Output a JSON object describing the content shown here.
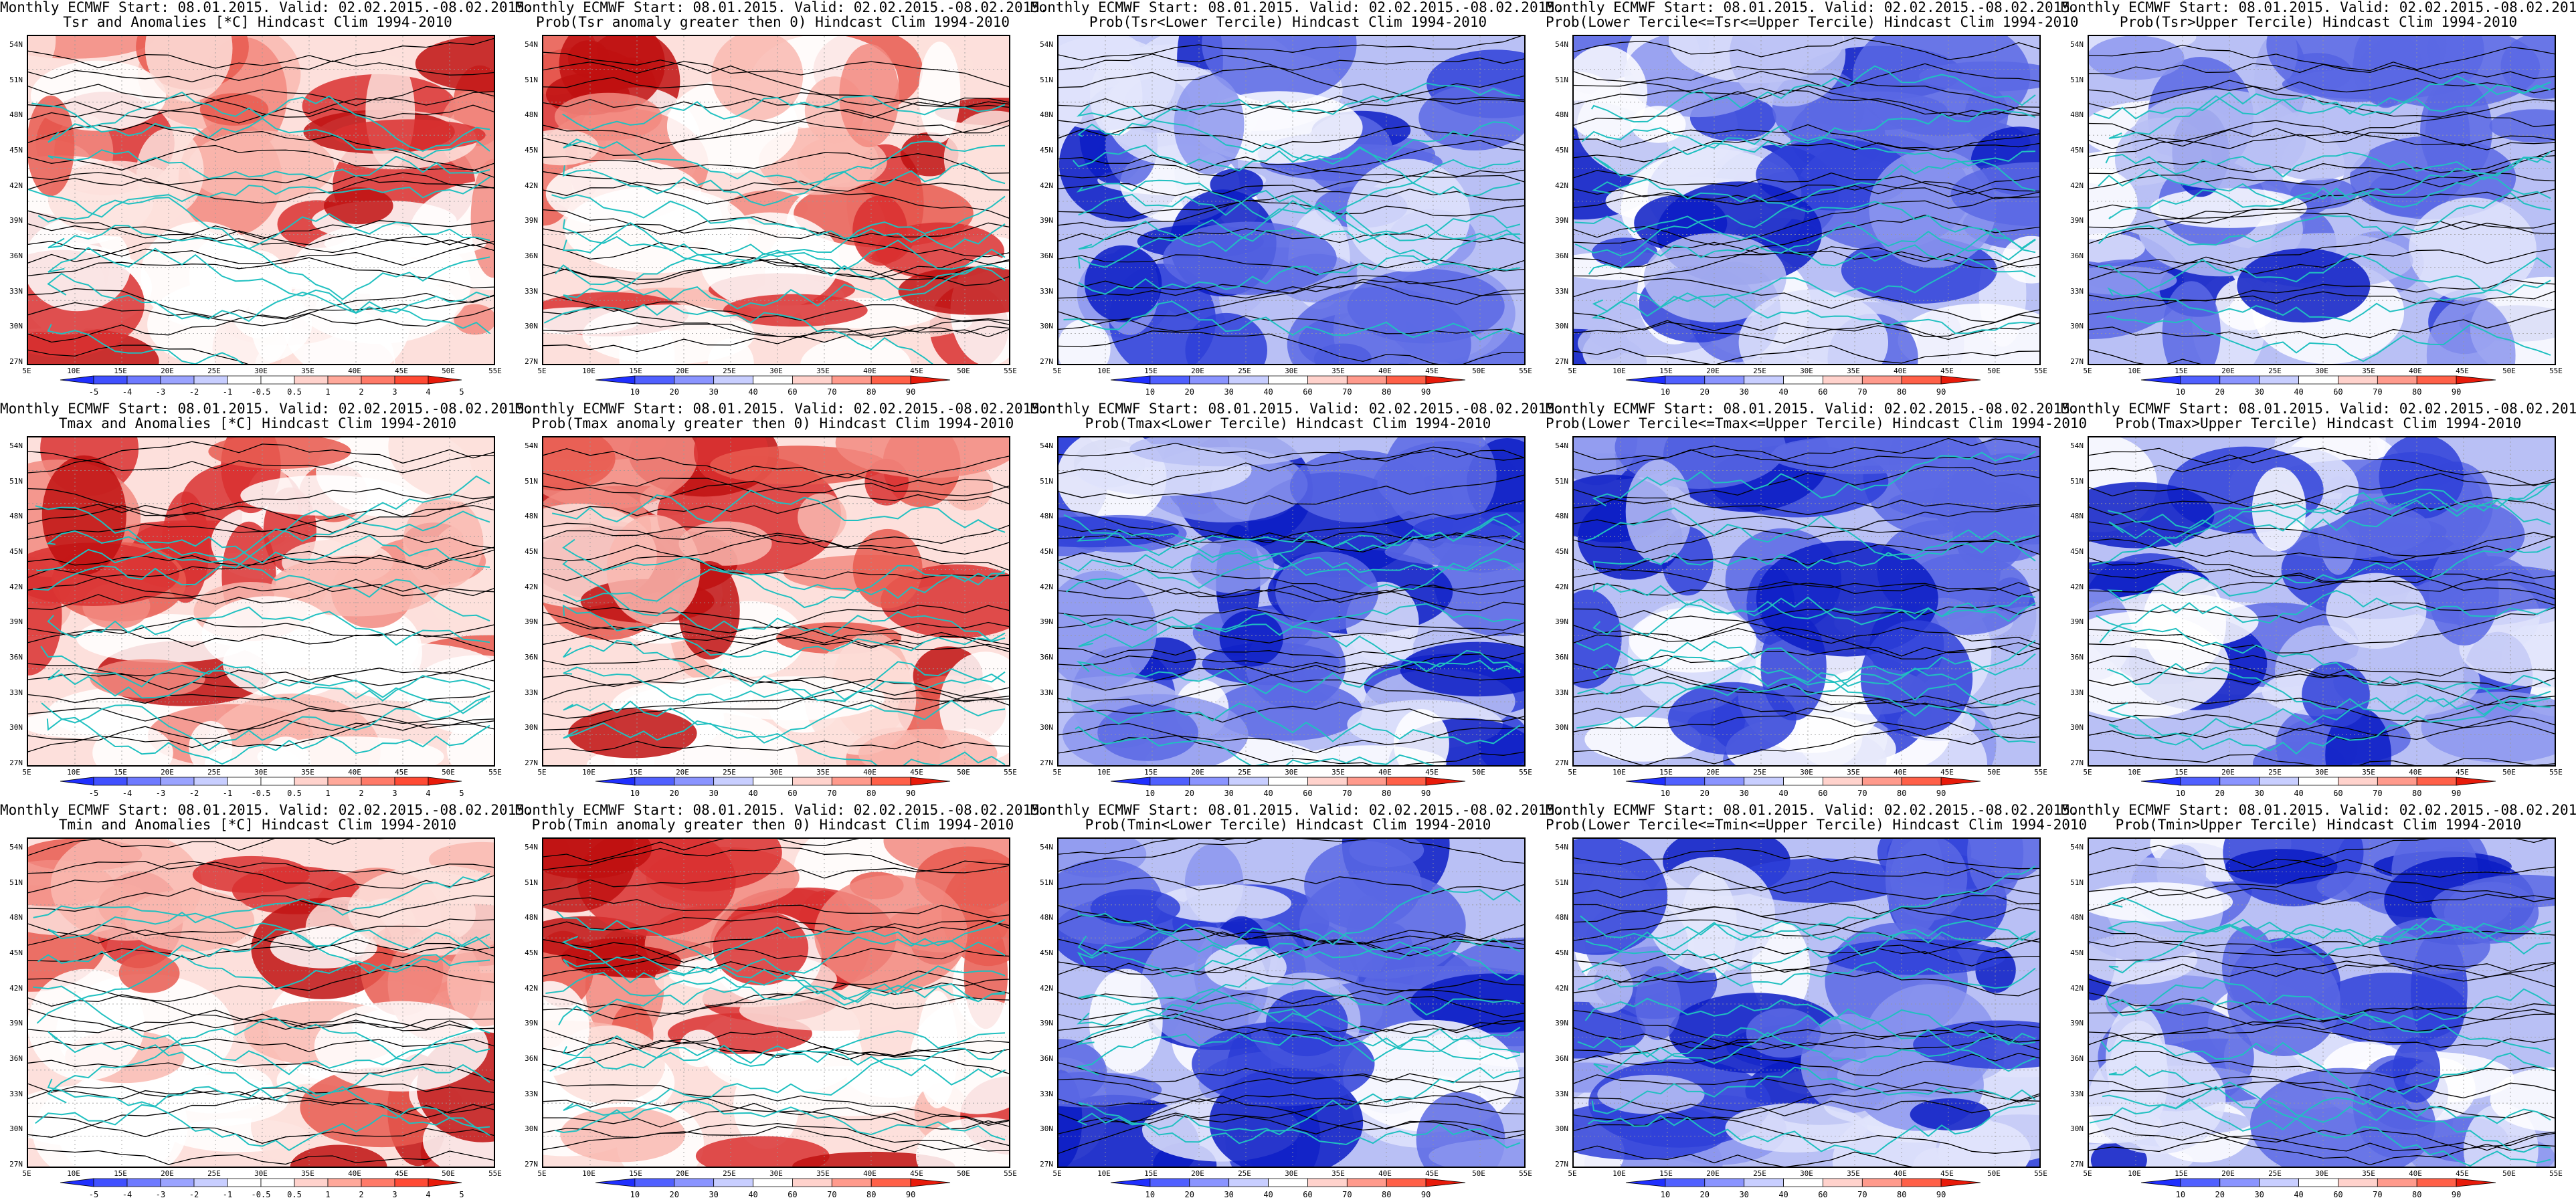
{
  "colors": {
    "red_scale": [
      "#ffffff",
      "#fde0dc",
      "#f9b8b0",
      "#f28a80",
      "#e85a50",
      "#d93030",
      "#c01010"
    ],
    "blue_scale": [
      "#ffffff",
      "#dfe3fb",
      "#b9c0f5",
      "#8c97ee",
      "#5b68e4",
      "#2e3fd8",
      "#0a1cc4"
    ],
    "prob_bar": [
      "#1f2fff",
      "#5060ff",
      "#8a94ff",
      "#c8ceff",
      "#ffffff",
      "#ffd2cc",
      "#ff9a8c",
      "#ff6048",
      "#e81a0a"
    ],
    "anom_bar": [
      "#1f2fff",
      "#4050ff",
      "#6e7aff",
      "#9aa3ff",
      "#c8ceff",
      "#ffffff",
      "#ffffff",
      "#ffd2cc",
      "#ffa89a",
      "#ff7a68",
      "#ff4a34",
      "#e81a0a"
    ],
    "coast": "#20c0c0",
    "contour": "#000000"
  },
  "axes": {
    "yticks": [
      "54N",
      "51N",
      "48N",
      "45N",
      "42N",
      "39N",
      "36N",
      "33N",
      "30N",
      "27N"
    ],
    "xticks": [
      "5E",
      "10E",
      "15E",
      "20E",
      "25E",
      "30E",
      "35E",
      "40E",
      "45E",
      "50E",
      "55E"
    ]
  },
  "colorbars": {
    "anomaly": [
      "-5",
      "-4",
      "-3",
      "-2",
      "-1",
      "-0.5",
      "0.5",
      "1",
      "2",
      "3",
      "4",
      "5"
    ],
    "probability": [
      "10",
      "20",
      "30",
      "40",
      "60",
      "70",
      "80",
      "90"
    ]
  },
  "chart_data": [
    {
      "type": "heatmap",
      "scheme": "red",
      "colorbar": "anomaly",
      "title": "Monthly ECMWF Start: 08.01.2015. Valid: 02.02.2015.-08.02.2015.",
      "subtitle": "Tsr and Anomalies [*C] Hindcast Clim 1994-2010"
    },
    {
      "type": "heatmap",
      "scheme": "red",
      "colorbar": "probability",
      "title": "Monthly ECMWF Start: 08.01.2015. Valid: 02.02.2015.-08.02.2015.",
      "subtitle": "Prob(Tsr anomaly greater then 0) Hindcast Clim 1994-2010"
    },
    {
      "type": "heatmap",
      "scheme": "blue",
      "colorbar": "probability",
      "title": "Monthly ECMWF Start: 08.01.2015. Valid: 02.02.2015.-08.02.2015.",
      "subtitle": "Prob(Tsr<Lower Tercile) Hindcast Clim 1994-2010"
    },
    {
      "type": "heatmap",
      "scheme": "blue",
      "colorbar": "probability",
      "title": "Monthly ECMWF Start: 08.01.2015. Valid: 02.02.2015.-08.02.2015.",
      "subtitle": "Prob(Lower Tercile<=Tsr<=Upper Tercile) Hindcast Clim 1994-2010"
    },
    {
      "type": "heatmap",
      "scheme": "blue",
      "colorbar": "probability",
      "title": "Monthly ECMWF Start: 08.01.2015. Valid: 02.02.2015.-08.02.2015.",
      "subtitle": "Prob(Tsr>Upper Tercile) Hindcast Clim 1994-2010"
    },
    {
      "type": "heatmap",
      "scheme": "red",
      "colorbar": "anomaly",
      "title": "Monthly ECMWF Start: 08.01.2015. Valid: 02.02.2015.-08.02.2015.",
      "subtitle": "Tmax and Anomalies [*C] Hindcast Clim 1994-2010"
    },
    {
      "type": "heatmap",
      "scheme": "red",
      "colorbar": "probability",
      "title": "Monthly ECMWF Start: 08.01.2015. Valid: 02.02.2015.-08.02.2015.",
      "subtitle": "Prob(Tmax anomaly greater then 0) Hindcast Clim 1994-2010"
    },
    {
      "type": "heatmap",
      "scheme": "blue",
      "colorbar": "probability",
      "title": "Monthly ECMWF Start: 08.01.2015. Valid: 02.02.2015.-08.02.2015.",
      "subtitle": "Prob(Tmax<Lower Tercile) Hindcast Clim 1994-2010"
    },
    {
      "type": "heatmap",
      "scheme": "blue",
      "colorbar": "probability",
      "title": "Monthly ECMWF Start: 08.01.2015. Valid: 02.02.2015.-08.02.2015.",
      "subtitle": "Prob(Lower Tercile<=Tmax<=Upper Tercile) Hindcast Clim 1994-2010"
    },
    {
      "type": "heatmap",
      "scheme": "blue",
      "colorbar": "probability",
      "title": "Monthly ECMWF Start: 08.01.2015. Valid: 02.02.2015.-08.02.2015.",
      "subtitle": "Prob(Tmax>Upper Tercile) Hindcast Clim 1994-2010"
    },
    {
      "type": "heatmap",
      "scheme": "red",
      "colorbar": "anomaly",
      "title": "Monthly ECMWF Start: 08.01.2015. Valid: 02.02.2015.-08.02.2015.",
      "subtitle": "Tmin and Anomalies [*C] Hindcast Clim 1994-2010"
    },
    {
      "type": "heatmap",
      "scheme": "red",
      "colorbar": "probability",
      "title": "Monthly ECMWF Start: 08.01.2015. Valid: 02.02.2015.-08.02.2015.",
      "subtitle": "Prob(Tmin anomaly greater then 0) Hindcast Clim 1994-2010"
    },
    {
      "type": "heatmap",
      "scheme": "blue",
      "colorbar": "probability",
      "title": "Monthly ECMWF Start: 08.01.2015. Valid: 02.02.2015.-08.02.2015.",
      "subtitle": "Prob(Tmin<Lower Tercile) Hindcast Clim 1994-2010"
    },
    {
      "type": "heatmap",
      "scheme": "blue",
      "colorbar": "probability",
      "title": "Monthly ECMWF Start: 08.01.2015. Valid: 02.02.2015.-08.02.2015.",
      "subtitle": "Prob(Lower Tercile<=Tmin<=Upper Tercile) Hindcast Clim 1994-2010"
    },
    {
      "type": "heatmap",
      "scheme": "blue",
      "colorbar": "probability",
      "title": "Monthly ECMWF Start: 08.01.2015. Valid: 02.02.2015.-08.02.2015.",
      "subtitle": "Prob(Tmin>Upper Tercile) Hindcast Clim 1994-2010"
    }
  ]
}
